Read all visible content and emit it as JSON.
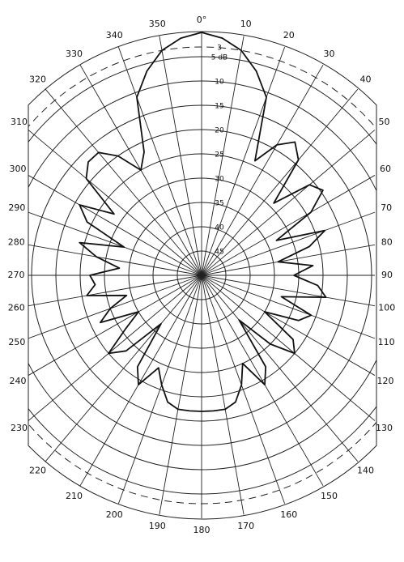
{
  "chart_data": {
    "type": "polar",
    "x": [
      0,
      5,
      10,
      15,
      20,
      25,
      30,
      35,
      40,
      45,
      50,
      55,
      60,
      65,
      70,
      75,
      80,
      85,
      90,
      95,
      100,
      105,
      110,
      115,
      120,
      125,
      130,
      135,
      140,
      145,
      150,
      155,
      160,
      165,
      170,
      175,
      180,
      185,
      190,
      195,
      200,
      205,
      210,
      215,
      220,
      225,
      230,
      235,
      240,
      245,
      250,
      255,
      260,
      265,
      270,
      275,
      280,
      285,
      290,
      295,
      300,
      305,
      310,
      315,
      320,
      325,
      330,
      335,
      340,
      345,
      350,
      355
    ],
    "values": [
      0,
      1,
      3,
      6.5,
      11,
      24,
      19,
      16.5,
      19,
      29,
      21,
      19.5,
      24,
      33,
      23,
      27,
      34,
      27,
      31,
      26,
      24,
      33,
      26,
      28,
      35,
      27,
      25,
      30,
      38,
      27,
      24,
      30,
      26,
      23,
      22,
      22,
      22,
      22,
      22,
      23,
      26,
      29,
      24,
      27,
      37,
      28,
      25,
      31,
      35,
      27,
      30,
      34,
      26,
      28,
      27,
      33,
      28,
      24,
      33,
      24,
      21,
      28,
      19,
      17,
      17,
      20,
      25,
      22,
      11,
      6.5,
      3,
      1
    ],
    "color": "#111111",
    "rlim": [
      50,
      0
    ],
    "rticks": [
      {
        "value": 3,
        "label": "3",
        "line": "dashed"
      },
      {
        "value": 5,
        "label": "5 dB"
      },
      10,
      15,
      20,
      25,
      30,
      35,
      40,
      45
    ],
    "thetaticks": [
      {
        "value": 0,
        "label": "0°"
      },
      10,
      20,
      30,
      40,
      50,
      60,
      70,
      80,
      90,
      100,
      110,
      120,
      130,
      140,
      150,
      160,
      170,
      180,
      190,
      200,
      210,
      220,
      230,
      240,
      250,
      260,
      270,
      280,
      290,
      300,
      310,
      320,
      330,
      340,
      350
    ],
    "grid": true
  }
}
